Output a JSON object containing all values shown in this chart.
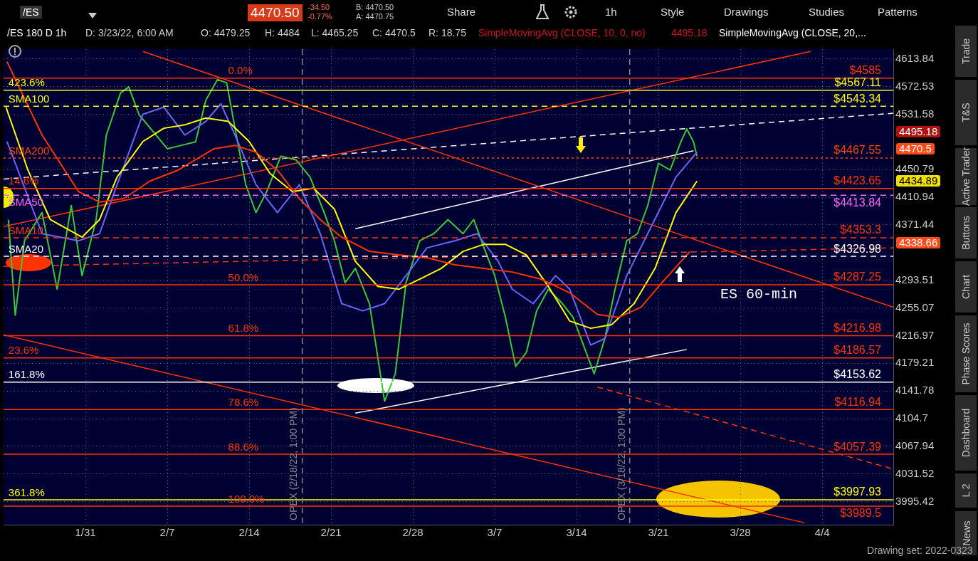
{
  "chart_data": {
    "type": "line",
    "xlim": [
      "2022-01-24T00:00",
      "2022-04-10T02:00"
    ],
    "xticks": [
      {
        "value": "2022-01-31",
        "label": "1/31"
      },
      {
        "value": "2022-02-07",
        "label": "2/7"
      },
      {
        "value": "2022-02-14",
        "label": "2/14"
      },
      {
        "value": "2022-02-21",
        "label": "2/21"
      },
      {
        "value": "2022-02-28",
        "label": "2/28"
      },
      {
        "value": "2022-03-07",
        "label": "3/7"
      },
      {
        "value": "2022-03-14",
        "label": "3/14"
      },
      {
        "value": "2022-03-21",
        "label": "3/21"
      },
      {
        "value": "2022-03-28",
        "label": "3/28"
      },
      {
        "value": "2022-04-04",
        "label": "4/4"
      }
    ],
    "ylim": [
      3965.6,
      4628.5
    ],
    "yticks": [
      4613.84,
      4572.53,
      4531.58,
      4450.79,
      4410.94,
      4371.44,
      4293.51,
      4255.07,
      4216.97,
      4179.21,
      4141.78,
      4104.7,
      4067.94,
      4031.52,
      3995.42
    ],
    "log": true,
    "grid": true,
    "legend": false,
    "marker": "none",
    "series": [
      {
        "color": "#ff3300",
        "x": [
          "2022-01-24T07:00",
          "2022-01-27T07:00",
          "2022-01-30T10:00",
          "2022-02-01T05:00",
          "2022-02-03T07:00",
          "2022-02-05T12:00",
          "2022-02-07T22:00",
          "2022-02-11T00:00",
          "2022-02-12T19:00",
          "2022-02-14T14:00",
          "2022-02-16T10:00",
          "2022-02-18T07:00",
          "2022-02-20T02:00",
          "2022-02-21T22:00",
          "2022-02-24T07:00",
          "2022-02-26T19:00",
          "2022-03-01T05:00",
          "2022-03-03T14:00",
          "2022-03-06T02:00",
          "2022-03-08T12:00",
          "2022-03-11T00:00",
          "2022-03-13T10:00",
          "2022-03-15T19:00",
          "2022-03-17T14:00",
          "2022-03-19T12:00",
          "2022-03-21T07:00",
          "2022-03-23T17:00"
        ],
        "values": [
          4609.7,
          4501,
          4419,
          4404,
          4409,
          4434,
          4450,
          4481,
          4486,
          4476,
          4450,
          4409,
          4379,
          4354,
          4334,
          4329,
          4325,
          4315,
          4310,
          4305,
          4295,
          4276,
          4246,
          4242,
          4256,
          4290,
          4334
        ]
      },
      {
        "color": "#ffff00",
        "x": [
          "2022-01-24T05:00",
          "2022-01-26T02:00",
          "2022-01-28T00:00",
          "2022-01-30T17:00",
          "2022-02-01T05:00",
          "2022-02-02T17:00",
          "2022-02-04T22:00",
          "2022-02-06T17:00",
          "2022-02-08T12:00",
          "2022-02-10T07:00",
          "2022-02-12T05:00",
          "2022-02-14T00:00",
          "2022-02-15T19:00",
          "2022-02-17T17:00",
          "2022-02-19T12:00",
          "2022-02-21T07:00",
          "2022-02-23T02:00",
          "2022-02-25T00:00",
          "2022-02-26T19:00",
          "2022-02-28T14:00",
          "2022-03-02T10:00",
          "2022-03-04T07:00",
          "2022-03-06T02:00",
          "2022-03-07T22:00",
          "2022-03-09T17:00",
          "2022-03-11T14:00",
          "2022-03-13T10:00",
          "2022-03-15T05:00",
          "2022-03-17T00:00",
          "2022-03-18T22:00",
          "2022-03-20T17:00",
          "2022-03-22T12:00",
          "2022-03-24T07:00"
        ],
        "values": [
          4542,
          4450,
          4379,
          4354,
          4379,
          4440,
          4491.6,
          4511,
          4516,
          4526,
          4521,
          4491.6,
          4445,
          4419,
          4424,
          4394,
          4320,
          4285,
          4281,
          4295,
          4310,
          4334,
          4344,
          4344,
          4329,
          4285,
          4237,
          4227,
          4232,
          4261,
          4310,
          4389,
          4434
        ]
      },
      {
        "color": "#6666ff",
        "x": [
          "2022-01-24T07:00",
          "2022-01-27T07:00",
          "2022-01-30T10:00",
          "2022-02-01T05:00",
          "2022-02-02T17:00",
          "2022-02-04T22:00",
          "2022-02-06T17:00",
          "2022-02-08T12:00",
          "2022-02-10T07:00",
          "2022-02-11T14:00",
          "2022-02-12T19:00",
          "2022-02-14T14:00",
          "2022-02-16T10:00",
          "2022-02-18T07:00",
          "2022-02-20T02:00",
          "2022-02-21T22:00",
          "2022-02-23T17:00",
          "2022-02-25T14:00",
          "2022-02-27T10:00",
          "2022-03-01T05:00",
          "2022-03-03T14:00",
          "2022-03-05T12:00",
          "2022-03-07T07:00",
          "2022-03-08T12:00",
          "2022-03-10T07:00",
          "2022-03-12T05:00",
          "2022-03-13T10:00",
          "2022-03-15T05:00",
          "2022-03-16T10:00",
          "2022-03-18T07:00",
          "2022-03-20T02:00",
          "2022-03-22T12:00",
          "2022-03-24T07:00"
        ],
        "values": [
          4491.6,
          4359,
          4349,
          4359,
          4429,
          4531.6,
          4542,
          4501,
          4521,
          4547,
          4501,
          4429,
          4389,
          4429,
          4359,
          4261,
          4251,
          4261,
          4300,
          4339,
          4349,
          4359,
          4320,
          4281,
          4261,
          4300,
          4281,
          4204,
          4213,
          4300,
          4359,
          4440,
          4476
        ]
      },
      {
        "color": "#33cc33",
        "x": [
          "2022-01-24T10:00",
          "2022-01-25T00:00",
          "2022-01-25T19:00",
          "2022-01-27T07:00",
          "2022-01-28T14:00",
          "2022-01-29T19:00",
          "2022-01-30T17:00",
          "2022-01-31T22:00",
          "2022-02-01T19:00",
          "2022-02-03T00:00",
          "2022-02-03T17:00",
          "2022-02-04T14:00",
          "2022-02-05T19:00",
          "2022-02-07T00:00",
          "2022-02-08T05:00",
          "2022-02-09T10:00",
          "2022-02-10T07:00",
          "2022-02-11T07:00",
          "2022-02-12T02:00",
          "2022-02-12T19:00",
          "2022-02-13T17:00",
          "2022-02-14T14:00",
          "2022-02-15T12:00",
          "2022-02-16T17:00",
          "2022-02-18T00:00",
          "2022-02-19T05:00",
          "2022-02-20T10:00",
          "2022-02-21T07:00",
          "2022-02-22T05:00",
          "2022-02-23T02:00",
          "2022-02-24T07:00",
          "2022-02-25T14:00",
          "2022-02-26T12:00",
          "2022-02-27T10:00",
          "2022-02-28T14:00",
          "2022-03-01T19:00",
          "2022-03-03T00:00",
          "2022-03-04T07:00",
          "2022-03-05T05:00",
          "2022-03-06T02:00",
          "2022-03-07T00:00",
          "2022-03-07T22:00",
          "2022-03-08T19:00",
          "2022-03-09T17:00",
          "2022-03-10T14:00",
          "2022-03-11T14:00",
          "2022-03-12T19:00",
          "2022-03-13T17:00",
          "2022-03-14T14:00",
          "2022-03-15T12:00",
          "2022-03-16T10:00",
          "2022-03-17T07:00",
          "2022-03-18T07:00",
          "2022-03-19T05:00",
          "2022-03-20T02:00",
          "2022-03-21T00:00",
          "2022-03-22T00:00",
          "2022-03-22T22:00",
          "2022-03-23T10:00",
          "2022-03-24T00:00",
          "2022-03-24T07:00"
        ],
        "values": [
          4379,
          4245,
          4349,
          4389,
          4281,
          4399,
          4300,
          4379,
          4501,
          4563,
          4572,
          4531,
          4506,
          4481,
          4486,
          4491,
          4552,
          4583,
          4578,
          4511,
          4429,
          4389,
          4419,
          4470,
          4465,
          4440,
          4389,
          4349,
          4290,
          4310,
          4261,
          4128,
          4165,
          4290,
          4349,
          4359,
          4379,
          4359,
          4379,
          4339,
          4300,
          4242,
          4175,
          4194,
          4251,
          4281,
          4261,
          4242,
          4204,
          4165,
          4213,
          4281,
          4349,
          4359,
          4399,
          4460,
          4450,
          4491,
          4510,
          4491,
          4470.5
        ]
      },
      {
        "color": "#ff3300",
        "x": [
          "2022-01-24T00:00",
          "2022-04-03T00:00"
        ],
        "values": [
          4369,
          4625
        ]
      },
      {
        "color": "#ff3300",
        "x": [
          "2022-02-04T22:00",
          "2022-04-10T02:00"
        ],
        "values": [
          4625,
          4256
        ]
      },
      {
        "color": "#ff3300",
        "x": [
          "2022-01-24T00:00",
          "2022-04-02T12:00"
        ],
        "values": [
          4218,
          3968
        ]
      },
      {
        "color": "#ffffff",
        "x": [
          "2022-02-23T02:00",
          "2022-03-23T10:00"
        ],
        "values": [
          4112,
          4198
        ]
      },
      {
        "color": "#ffffff",
        "x": [
          "2022-02-23T02:00",
          "2022-03-24T00:00"
        ],
        "values": [
          4366,
          4478
        ]
      },
      {
        "color": "#ffffff",
        "line_style": "dashed",
        "x": [
          "2022-01-24T00:00",
          "2022-04-10T02:00"
        ],
        "values": [
          4437,
          4533
        ]
      },
      {
        "color": "#ff3300",
        "line_style": "dashed",
        "x": [
          "2022-01-24T00:00",
          "2022-04-10T02:00"
        ],
        "values": [
          4313,
          4339
        ]
      },
      {
        "color": "#ff3300",
        "line_style": "dashed",
        "x": [
          "2022-03-15T19:00",
          "2022-04-10T02:00"
        ],
        "values": [
          4147,
          4038
        ]
      }
    ],
    "ref_lines": [
      {
        "axis": "y",
        "value": 4585,
        "label": "$4585",
        "color": "#ff3300"
      },
      {
        "axis": "y",
        "value": 4567.11,
        "label": "$4567.11",
        "color": "#ffff00"
      },
      {
        "axis": "y",
        "value": 4543.34,
        "label": "$4543.34",
        "color": "#ffff00",
        "line_style": "dashed"
      },
      {
        "axis": "y",
        "value": 4467.55,
        "label": "$4467.55",
        "color": "#ff4500",
        "line_style": "dotted"
      },
      {
        "axis": "y",
        "value": 4423.65,
        "label": "$4423.65",
        "color": "#ff3300"
      },
      {
        "axis": "y",
        "value": 4413.84,
        "label": "$4413.84",
        "color": "#ff66ff",
        "line_style": "dashed"
      },
      {
        "axis": "y",
        "value": 4353.3,
        "label": "$4353.3",
        "color": "#ff3300",
        "line_style": "dashed"
      },
      {
        "axis": "y",
        "value": 4326.98,
        "label": "$4326.98",
        "color": "#ffffff",
        "line_style": "dashed"
      },
      {
        "axis": "y",
        "value": 4287.25,
        "label": "$4287.25",
        "color": "#ff3300"
      },
      {
        "axis": "y",
        "value": 4216.98,
        "label": "$4216.98",
        "color": "#ff3300"
      },
      {
        "axis": "y",
        "value": 4186.57,
        "label": "$4186.57",
        "color": "#ff3300"
      },
      {
        "axis": "y",
        "value": 4153.62,
        "label": "$4153.62",
        "color": "#ffffff"
      },
      {
        "axis": "y",
        "value": 4116.94,
        "label": "$4116.94",
        "color": "#ff3300"
      },
      {
        "axis": "y",
        "value": 4057.39,
        "label": "$4057.39",
        "color": "#ff3300"
      },
      {
        "axis": "y",
        "value": 3997.93,
        "label": "$3997.93",
        "color": "#ffff00"
      },
      {
        "axis": "y",
        "value": 3989.5,
        "label": "$3989.5",
        "color": "#ff3300"
      },
      {
        "axis": "x",
        "value": "2022-02-18T13:00",
        "label": "OPEX (2/18/22, 1:00 PM)",
        "color": "#888888",
        "line_style": "dashed"
      },
      {
        "axis": "x",
        "value": "2022-03-18T13:00",
        "label": "OPEX (3/18/22, 1:00 PM)",
        "color": "#888888",
        "line_style": "dashed"
      }
    ],
    "annotations": [
      {
        "text": "0.0%",
        "x": "2022-02-12T05:00",
        "y": 4585
      },
      {
        "text": "423.6%",
        "x": "2022-01-24T10:00",
        "y": 4567.11
      },
      {
        "text": "SMA100",
        "x": "2022-01-24T10:00",
        "y": 4543.34
      },
      {
        "text": "SMA200",
        "x": "2022-01-24T10:00",
        "y": 4467.55
      },
      {
        "text": "14.6%",
        "x": "2022-01-24T10:00",
        "y": 4423.65
      },
      {
        "text": "SMA50",
        "x": "2022-01-24T10:00",
        "y": 4413.84
      },
      {
        "text": "SMA10",
        "x": "2022-01-24T10:00",
        "y": 4353.3
      },
      {
        "text": "SMA20",
        "x": "2022-01-24T10:00",
        "y": 4326.98
      },
      {
        "text": "50.0%",
        "x": "2022-02-12T05:00",
        "y": 4287.25
      },
      {
        "text": "61.8%",
        "x": "2022-02-12T05:00",
        "y": 4216.98
      },
      {
        "text": "23.6%",
        "x": "2022-01-24T10:00",
        "y": 4186.57
      },
      {
        "text": "161.8%",
        "x": "2022-01-24T10:00",
        "y": 4153.62
      },
      {
        "text": "78.6%",
        "x": "2022-02-12T05:00",
        "y": 4116.94
      },
      {
        "text": "88.6%",
        "x": "2022-02-12T05:00",
        "y": 4057.39
      },
      {
        "text": "361.8%",
        "x": "2022-01-24T10:00",
        "y": 3997.93
      },
      {
        "text": "100.0%",
        "x": "2022-02-12T05:00",
        "y": 3989.5
      },
      "/ES",
      "4470.50",
      "-34.50",
      "-0.77%",
      "B: 4470.50",
      "A: 4470.75",
      "Share",
      "1h",
      "Style",
      "Drawings",
      "Studies",
      "Patterns",
      "/ES 180 D 1h",
      "D: 3/23/22, 6:00 AM",
      "O: 4479.25",
      "H: 4484",
      "L: 4465.25",
      "C: 4470.5",
      "R: 18.75",
      "SimpleMovingAvg (CLOSE, 10, 0, no)",
      "4495.18",
      "SimpleMovingAvg (CLOSE, 20,...",
      "ES 60-min",
      "Trade",
      "T&S",
      "Active Trader",
      "Buttons",
      "Chart",
      "Phase Scores",
      "Dashboard",
      "L 2",
      "News",
      "Drawing set: 2022-0323",
      "4495.18",
      "4470.5",
      "4434.89",
      "4338.66"
    ]
  }
}
